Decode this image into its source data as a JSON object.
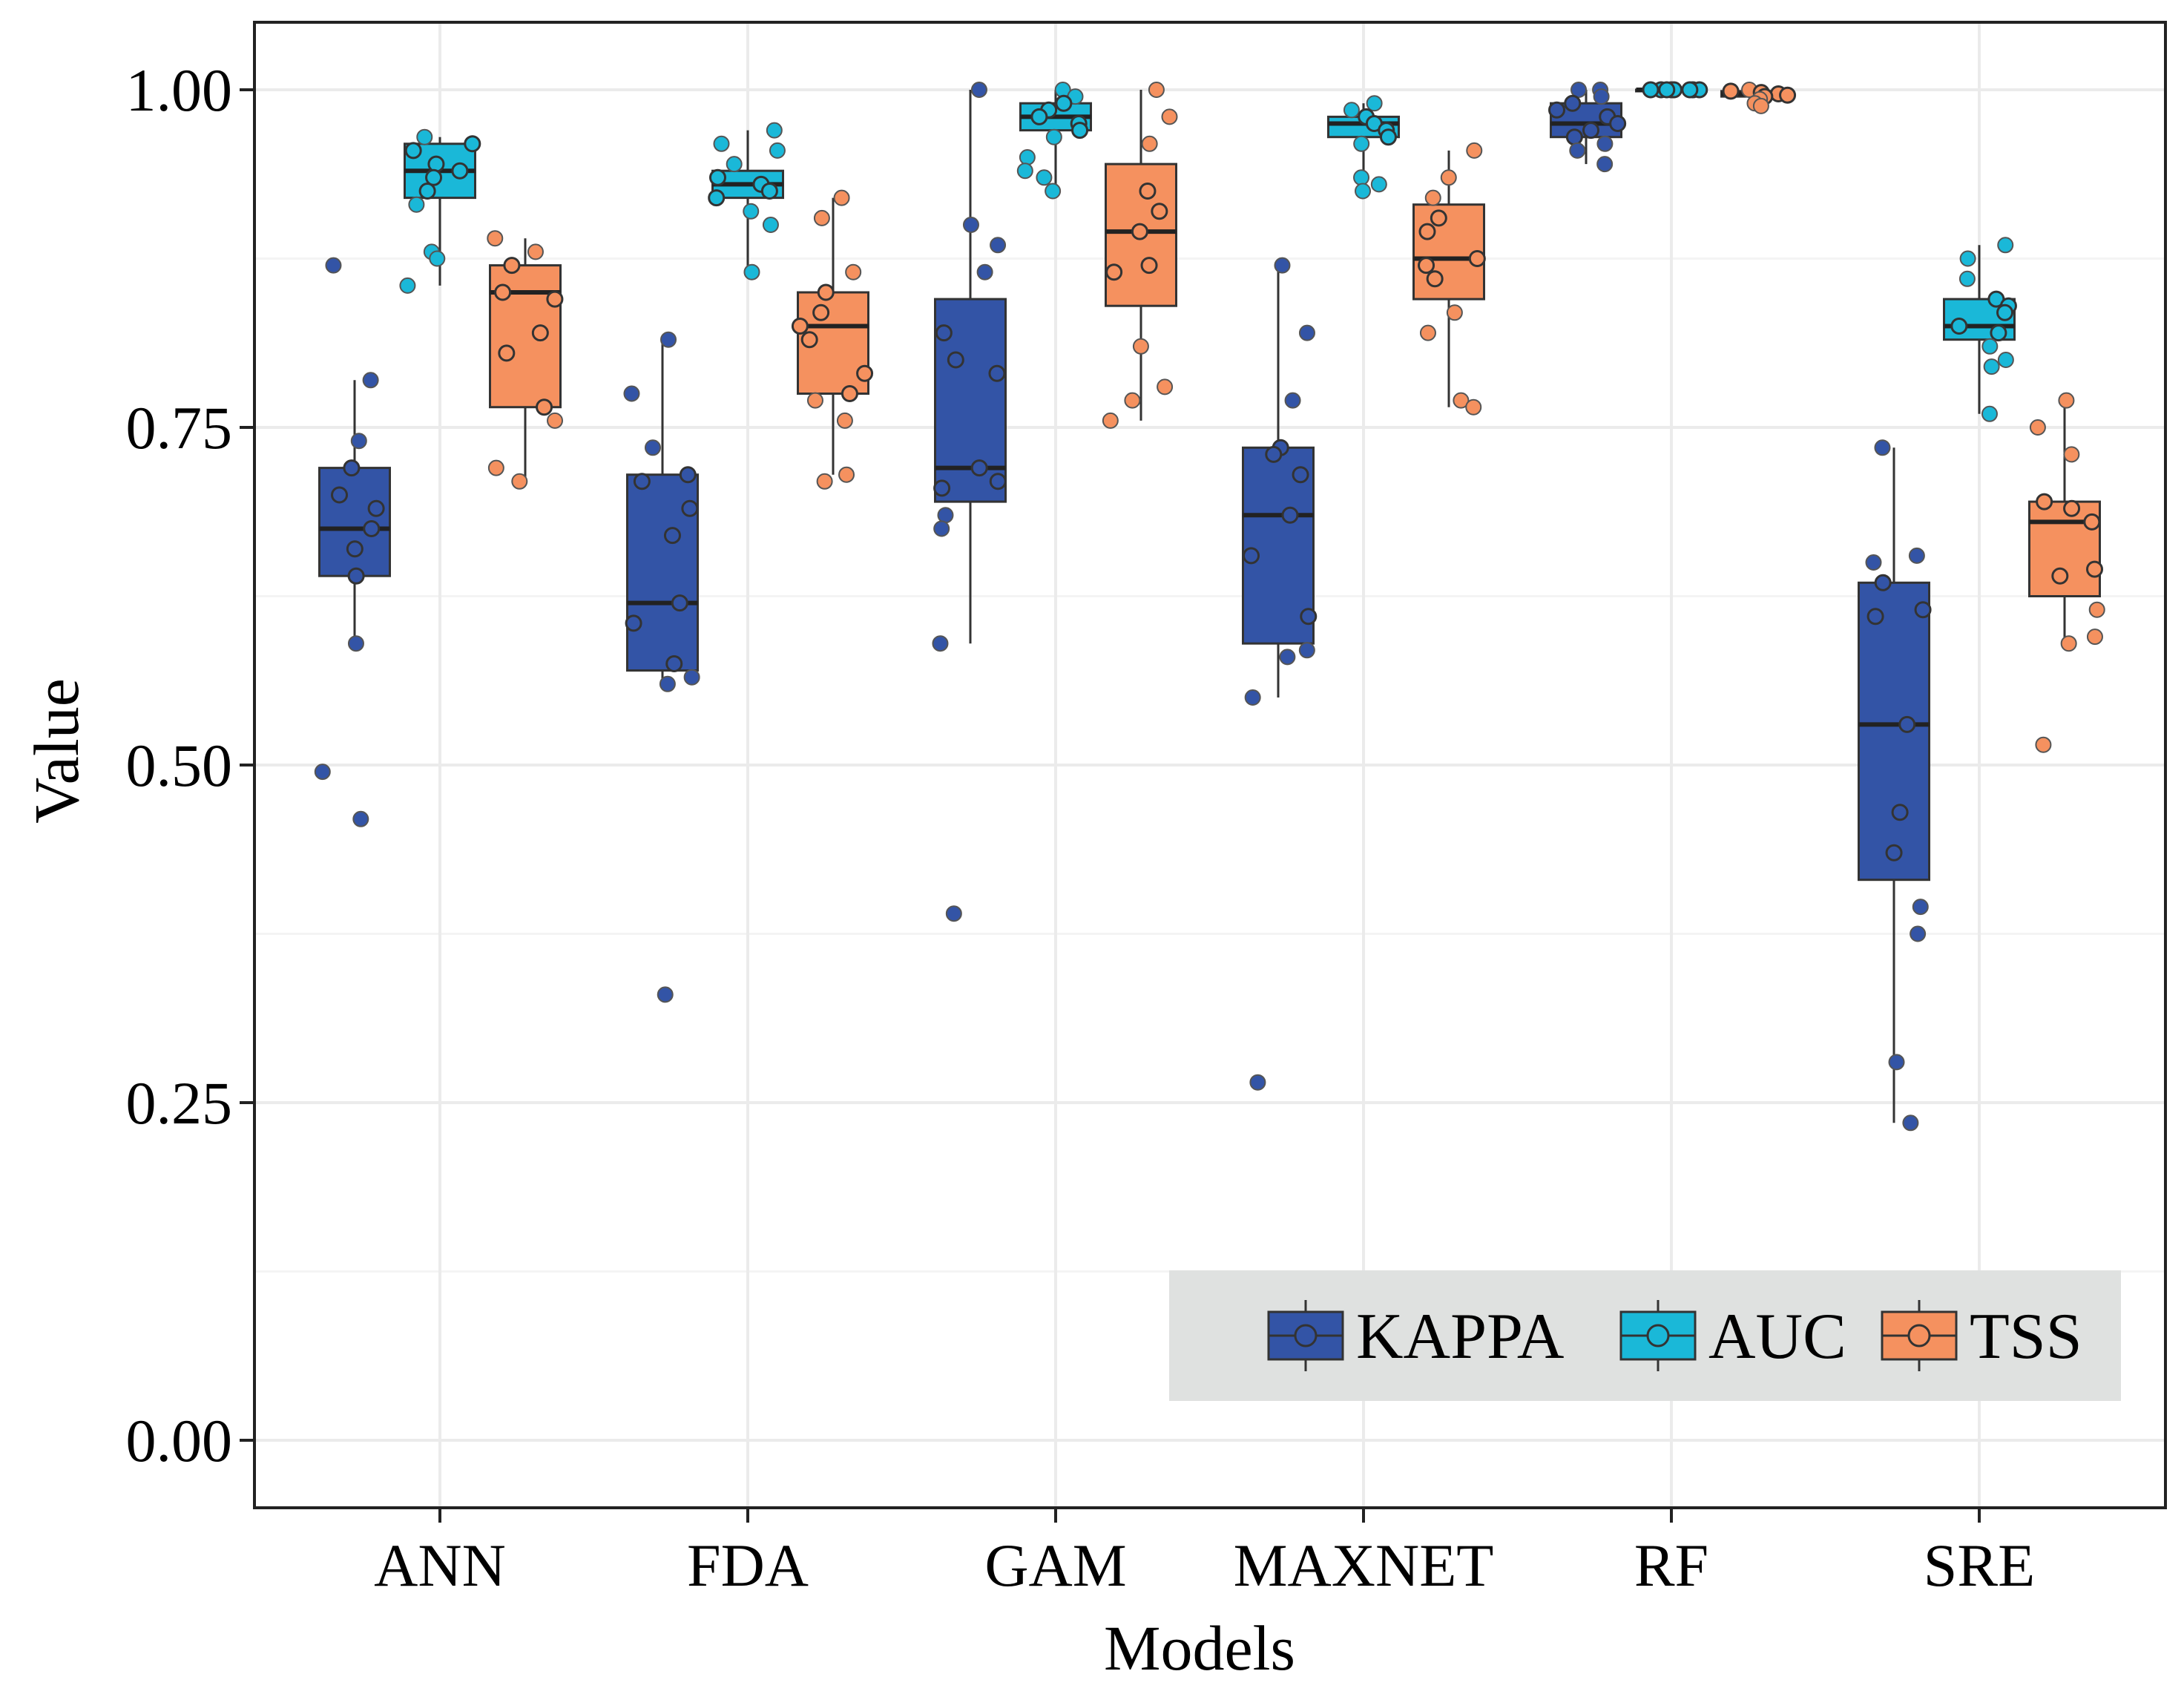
{
  "chart_data": {
    "type": "boxplot",
    "title": "",
    "xlabel": "Models",
    "ylabel": "Value",
    "ylim": [
      -0.05,
      1.05
    ],
    "yticks": [
      0.0,
      0.25,
      0.5,
      0.75,
      1.0
    ],
    "ytick_labels": [
      "0.00",
      "0.25",
      "0.50",
      "0.75",
      "1.00"
    ],
    "categories": [
      "ANN",
      "FDA",
      "GAM",
      "MAXNET",
      "RF",
      "SRE"
    ],
    "grid": true,
    "legend_position": "bottom-right",
    "series": [
      {
        "name": "KAPPA",
        "color": "#3354a6",
        "boxes": [
          {
            "min": 0.59,
            "q1": 0.64,
            "median": 0.675,
            "q3": 0.72,
            "max": 0.785,
            "points": [
              0.87,
              0.785,
              0.74,
              0.72,
              0.7,
              0.69,
              0.675,
              0.66,
              0.64,
              0.59,
              0.495,
              0.46
            ]
          },
          {
            "min": 0.56,
            "q1": 0.57,
            "median": 0.62,
            "q3": 0.715,
            "max": 0.815,
            "points": [
              0.815,
              0.775,
              0.735,
              0.715,
              0.71,
              0.69,
              0.67,
              0.62,
              0.605,
              0.575,
              0.565,
              0.56,
              0.33
            ]
          },
          {
            "min": 0.59,
            "q1": 0.695,
            "median": 0.72,
            "q3": 0.845,
            "max": 1.0,
            "points": [
              1.0,
              0.9,
              0.885,
              0.865,
              0.82,
              0.8,
              0.79,
              0.72,
              0.71,
              0.705,
              0.685,
              0.675,
              0.59,
              0.39
            ]
          },
          {
            "min": 0.55,
            "q1": 0.59,
            "median": 0.685,
            "q3": 0.735,
            "max": 0.87,
            "points": [
              0.87,
              0.82,
              0.77,
              0.735,
              0.73,
              0.715,
              0.685,
              0.655,
              0.61,
              0.585,
              0.58,
              0.55,
              0.265
            ]
          },
          {
            "min": 0.945,
            "q1": 0.965,
            "median": 0.975,
            "q3": 0.99,
            "max": 1.0,
            "points": [
              1.0,
              1.0,
              0.995,
              0.99,
              0.985,
              0.98,
              0.975,
              0.97,
              0.965,
              0.96,
              0.955,
              0.945
            ]
          },
          {
            "min": 0.235,
            "q1": 0.415,
            "median": 0.53,
            "q3": 0.635,
            "max": 0.735,
            "points": [
              0.735,
              0.655,
              0.65,
              0.635,
              0.615,
              0.61,
              0.53,
              0.465,
              0.435,
              0.395,
              0.375,
              0.28,
              0.235
            ]
          }
        ]
      },
      {
        "name": "AUC",
        "color": "#1ab8d8",
        "boxes": [
          {
            "min": 0.855,
            "q1": 0.92,
            "median": 0.94,
            "q3": 0.96,
            "max": 0.965,
            "points": [
              0.965,
              0.96,
              0.955,
              0.945,
              0.94,
              0.935,
              0.925,
              0.915,
              0.88,
              0.875,
              0.855
            ]
          },
          {
            "min": 0.865,
            "q1": 0.92,
            "median": 0.93,
            "q3": 0.94,
            "max": 0.97,
            "points": [
              0.97,
              0.96,
              0.955,
              0.945,
              0.935,
              0.93,
              0.925,
              0.92,
              0.91,
              0.9,
              0.865
            ]
          },
          {
            "min": 0.925,
            "q1": 0.97,
            "median": 0.98,
            "q3": 0.99,
            "max": 1.0,
            "points": [
              1.0,
              0.995,
              0.99,
              0.985,
              0.98,
              0.975,
              0.97,
              0.965,
              0.95,
              0.94,
              0.935,
              0.925
            ]
          },
          {
            "min": 0.925,
            "q1": 0.965,
            "median": 0.975,
            "q3": 0.98,
            "max": 0.99,
            "points": [
              0.99,
              0.985,
              0.98,
              0.975,
              0.97,
              0.965,
              0.96,
              0.935,
              0.93,
              0.925
            ]
          },
          {
            "min": 1.0,
            "q1": 1.0,
            "median": 1.0,
            "q3": 1.0,
            "max": 1.0,
            "points": [
              1.0,
              1.0,
              1.0,
              1.0,
              1.0,
              1.0,
              1.0,
              1.0
            ]
          },
          {
            "min": 0.76,
            "q1": 0.815,
            "median": 0.825,
            "q3": 0.845,
            "max": 0.885,
            "points": [
              0.885,
              0.875,
              0.86,
              0.845,
              0.84,
              0.835,
              0.825,
              0.82,
              0.81,
              0.8,
              0.795,
              0.76
            ]
          }
        ]
      },
      {
        "name": "TSS",
        "color": "#f5915f",
        "boxes": [
          {
            "min": 0.71,
            "q1": 0.765,
            "median": 0.85,
            "q3": 0.87,
            "max": 0.89,
            "points": [
              0.89,
              0.88,
              0.87,
              0.85,
              0.845,
              0.82,
              0.805,
              0.765,
              0.755,
              0.72,
              0.71
            ]
          },
          {
            "min": 0.715,
            "q1": 0.775,
            "median": 0.825,
            "q3": 0.85,
            "max": 0.92,
            "points": [
              0.92,
              0.905,
              0.865,
              0.85,
              0.835,
              0.825,
              0.815,
              0.79,
              0.775,
              0.77,
              0.755,
              0.715,
              0.71
            ]
          },
          {
            "min": 0.755,
            "q1": 0.84,
            "median": 0.895,
            "q3": 0.945,
            "max": 1.0,
            "points": [
              1.0,
              0.98,
              0.96,
              0.925,
              0.91,
              0.895,
              0.87,
              0.865,
              0.81,
              0.78,
              0.77,
              0.755
            ]
          },
          {
            "min": 0.765,
            "q1": 0.845,
            "median": 0.875,
            "q3": 0.915,
            "max": 0.955,
            "points": [
              0.955,
              0.935,
              0.92,
              0.905,
              0.895,
              0.875,
              0.87,
              0.86,
              0.835,
              0.82,
              0.77,
              0.765
            ]
          },
          {
            "min": 0.99,
            "q1": 0.995,
            "median": 0.997,
            "q3": 0.999,
            "max": 1.0,
            "points": [
              1.0,
              0.999,
              0.998,
              0.997,
              0.996,
              0.995,
              0.993,
              0.99,
              0.988
            ]
          },
          {
            "min": 0.59,
            "q1": 0.625,
            "median": 0.68,
            "q3": 0.695,
            "max": 0.77,
            "points": [
              0.77,
              0.75,
              0.73,
              0.695,
              0.69,
              0.68,
              0.645,
              0.64,
              0.615,
              0.595,
              0.59,
              0.515
            ]
          }
        ]
      }
    ]
  }
}
